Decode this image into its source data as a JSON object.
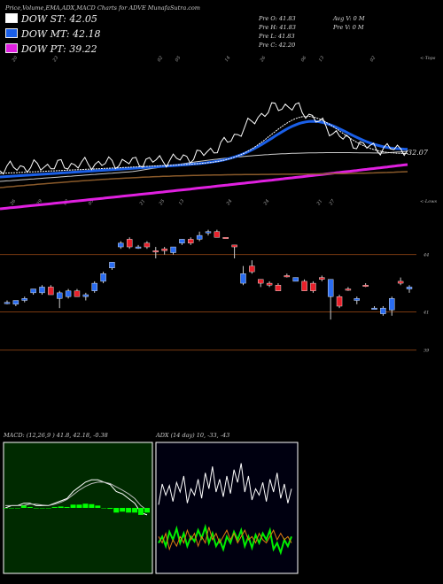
{
  "header": {
    "title": "Price,Volume,EMA,ADX,MACD Charts for ADVE MunafaSutra.com"
  },
  "legend": [
    {
      "label": "DOW ST: 42.05",
      "color": "#ffffff"
    },
    {
      "label": "DOW MT: 42.18",
      "color": "#1a5fe8"
    },
    {
      "label": "DOW PT: 39.22",
      "color": "#e020e0"
    }
  ],
  "stats": {
    "col1": [
      "Pre O: 41.83",
      "Pre H: 41.83",
      "Pre L: 41.83",
      "Pre C: 42.20"
    ],
    "col2": [
      "Avg V: 0 M",
      "Pre V: 0 M"
    ]
  },
  "price_chart": {
    "corner_top": "<-Tops",
    "corner_bottom": "<-Lows",
    "ema_label": "32.07",
    "top_date_labels": [
      "20",
      "23",
      "02",
      "05",
      "14",
      "26",
      "06",
      "13",
      "02"
    ],
    "bottom_date_labels": [
      "26",
      "29",
      "02",
      "05",
      "21",
      "25",
      "13",
      "24",
      "24",
      "21",
      "27"
    ],
    "levels": [
      {
        "value": 44,
        "label": "44"
      },
      {
        "value": 41,
        "label": "41"
      },
      {
        "value": 39,
        "label": "39"
      }
    ]
  },
  "chart_data": [
    {
      "type": "candlestick",
      "title": "",
      "ylim": [
        38.8,
        46.3
      ],
      "level_lines": [
        44,
        41,
        39
      ],
      "candles": [
        {
          "o": 41.5,
          "h": 41.6,
          "l": 41.4,
          "c": 41.5,
          "color": "blue"
        },
        {
          "o": 41.4,
          "h": 41.6,
          "l": 41.3,
          "c": 41.6,
          "color": "blue"
        },
        {
          "o": 41.6,
          "h": 41.8,
          "l": 41.5,
          "c": 41.7,
          "color": "blue"
        },
        {
          "o": 42.0,
          "h": 42.2,
          "l": 41.9,
          "c": 42.2,
          "color": "blue"
        },
        {
          "o": 42.0,
          "h": 42.4,
          "l": 41.9,
          "c": 42.3,
          "color": "blue"
        },
        {
          "o": 42.3,
          "h": 42.4,
          "l": 41.9,
          "c": 41.9,
          "color": "red"
        },
        {
          "o": 41.7,
          "h": 42.1,
          "l": 41.2,
          "c": 42.0,
          "color": "blue"
        },
        {
          "o": 41.8,
          "h": 42.2,
          "l": 41.7,
          "c": 42.1,
          "color": "blue"
        },
        {
          "o": 42.1,
          "h": 42.2,
          "l": 41.8,
          "c": 41.8,
          "color": "red"
        },
        {
          "o": 41.8,
          "h": 42.0,
          "l": 41.6,
          "c": 41.9,
          "color": "blue"
        },
        {
          "o": 42.1,
          "h": 42.6,
          "l": 42.0,
          "c": 42.5,
          "color": "blue"
        },
        {
          "o": 42.6,
          "h": 43.1,
          "l": 42.5,
          "c": 43.0,
          "color": "blue"
        },
        {
          "o": 43.3,
          "h": 43.6,
          "l": 43.2,
          "c": 43.6,
          "color": "blue"
        },
        {
          "o": 44.4,
          "h": 44.7,
          "l": 44.3,
          "c": 44.6,
          "color": "blue"
        },
        {
          "o": 44.8,
          "h": 44.9,
          "l": 44.3,
          "c": 44.4,
          "color": "red"
        },
        {
          "o": 44.4,
          "h": 44.5,
          "l": 44.3,
          "c": 44.4,
          "color": "blue"
        },
        {
          "o": 44.6,
          "h": 44.7,
          "l": 44.3,
          "c": 44.4,
          "color": "red"
        },
        {
          "o": 44.2,
          "h": 44.4,
          "l": 43.8,
          "c": 44.2,
          "color": "red"
        },
        {
          "o": 44.2,
          "h": 44.4,
          "l": 44.0,
          "c": 44.3,
          "color": "red"
        },
        {
          "o": 44.1,
          "h": 44.4,
          "l": 44.0,
          "c": 44.4,
          "color": "blue"
        },
        {
          "o": 44.6,
          "h": 44.8,
          "l": 44.5,
          "c": 44.8,
          "color": "blue"
        },
        {
          "o": 44.6,
          "h": 44.9,
          "l": 44.5,
          "c": 44.8,
          "color": "red"
        },
        {
          "o": 44.8,
          "h": 45.2,
          "l": 44.7,
          "c": 45.0,
          "color": "blue"
        },
        {
          "o": 45.2,
          "h": 45.3,
          "l": 45.0,
          "c": 45.2,
          "color": "blue"
        },
        {
          "o": 45.2,
          "h": 45.3,
          "l": 44.9,
          "c": 44.9,
          "color": "red"
        },
        {
          "o": 44.9,
          "h": 44.9,
          "l": 44.9,
          "c": 44.9,
          "color": "red"
        },
        {
          "o": 44.5,
          "h": 44.5,
          "l": 43.8,
          "c": 44.4,
          "color": "red"
        },
        {
          "o": 42.5,
          "h": 43.4,
          "l": 42.4,
          "c": 43.0,
          "color": "blue"
        },
        {
          "o": 43.4,
          "h": 43.7,
          "l": 43.0,
          "c": 43.1,
          "color": "red"
        },
        {
          "o": 42.7,
          "h": 42.7,
          "l": 42.3,
          "c": 42.5,
          "color": "red"
        },
        {
          "o": 42.4,
          "h": 42.6,
          "l": 42.3,
          "c": 42.5,
          "color": "red"
        },
        {
          "o": 42.4,
          "h": 42.5,
          "l": 42.1,
          "c": 42.1,
          "color": "red"
        },
        {
          "o": 42.9,
          "h": 43.0,
          "l": 42.8,
          "c": 42.9,
          "color": "red"
        },
        {
          "o": 42.8,
          "h": 42.8,
          "l": 42.6,
          "c": 42.6,
          "color": "blue"
        },
        {
          "o": 42.6,
          "h": 42.7,
          "l": 42.1,
          "c": 42.1,
          "color": "red"
        },
        {
          "o": 42.5,
          "h": 42.6,
          "l": 42.0,
          "c": 42.1,
          "color": "red"
        },
        {
          "o": 42.7,
          "h": 42.9,
          "l": 42.6,
          "c": 42.8,
          "color": "red"
        },
        {
          "o": 42.7,
          "h": 42.7,
          "l": 40.6,
          "c": 41.8,
          "color": "blue"
        },
        {
          "o": 41.8,
          "h": 41.9,
          "l": 41.2,
          "c": 41.3,
          "color": "red"
        },
        {
          "o": 42.2,
          "h": 42.3,
          "l": 42.1,
          "c": 42.2,
          "color": "red"
        },
        {
          "o": 41.7,
          "h": 41.8,
          "l": 41.4,
          "c": 41.6,
          "color": "blue"
        },
        {
          "o": 42.4,
          "h": 42.5,
          "l": 42.3,
          "c": 42.4,
          "color": "red"
        },
        {
          "o": 41.2,
          "h": 41.3,
          "l": 41.2,
          "c": 41.2,
          "color": "blue"
        },
        {
          "o": 40.9,
          "h": 41.3,
          "l": 40.8,
          "c": 41.2,
          "color": "blue"
        },
        {
          "o": 41.1,
          "h": 41.8,
          "l": 40.8,
          "c": 41.7,
          "color": "blue"
        },
        {
          "o": 42.6,
          "h": 42.8,
          "l": 42.4,
          "c": 42.5,
          "color": "red"
        },
        {
          "o": 42.2,
          "h": 42.4,
          "l": 42.0,
          "c": 42.3,
          "color": "blue"
        }
      ]
    },
    {
      "type": "line",
      "title": "MACD: (12,26,9 ) 41.8, 42.18, -0.38",
      "series": [
        {
          "color": "#ffffff",
          "values": [
            0.0,
            0.05,
            0.05,
            0.1,
            0.1,
            0.05,
            0.05,
            0.05,
            0.1,
            0.15,
            0.2,
            0.35,
            0.45,
            0.55,
            0.6,
            0.6,
            0.55,
            0.5,
            0.35,
            0.3,
            0.2,
            0.1,
            -0.1,
            -0.15
          ]
        },
        {
          "color": "#bbbbbb",
          "values": [
            0.05,
            0.05,
            0.05,
            0.05,
            0.08,
            0.08,
            0.06,
            0.05,
            0.08,
            0.12,
            0.18,
            0.28,
            0.38,
            0.46,
            0.52,
            0.55,
            0.55,
            0.52,
            0.45,
            0.38,
            0.3,
            0.2,
            0.05,
            -0.05
          ]
        },
        {
          "color": "#00ff00",
          "type": "bar",
          "values": [
            0.0,
            0.0,
            0.0,
            0.05,
            0.02,
            0.0,
            0.0,
            0.0,
            0.02,
            0.03,
            0.02,
            0.07,
            0.07,
            0.09,
            0.08,
            0.05,
            0.0,
            -0.02,
            -0.1,
            -0.08,
            -0.1,
            -0.1,
            -0.15,
            -0.1
          ]
        }
      ],
      "ylim": [
        -1.4,
        1.4
      ]
    },
    {
      "type": "line",
      "title": "ADX (14 day) 10, -33, -43",
      "series": [
        {
          "color": "#ffffff",
          "values": [
            42,
            55,
            48,
            54,
            44,
            56,
            50,
            60,
            43,
            52,
            48,
            58,
            46,
            62,
            52,
            66,
            50,
            58,
            47,
            60,
            49,
            64,
            56,
            68,
            50,
            60,
            45,
            52,
            48,
            56,
            44,
            58,
            50,
            62,
            46,
            55,
            43,
            52
          ]
        },
        {
          "color": "#00ee00",
          "values": [
            18,
            22,
            16,
            25,
            20,
            27,
            18,
            24,
            16,
            22,
            19,
            26,
            21,
            28,
            18,
            24,
            16,
            20,
            14,
            22,
            18,
            25,
            20,
            26,
            16,
            22,
            15,
            23,
            18,
            24,
            20,
            26,
            14,
            18,
            12,
            20,
            16,
            22
          ]
        },
        {
          "color": "#e07a10",
          "values": [
            22,
            18,
            24,
            14,
            20,
            16,
            22,
            18,
            26,
            20,
            24,
            16,
            22,
            18,
            28,
            20,
            24,
            18,
            22,
            26,
            20,
            24,
            18,
            22,
            26,
            20,
            22,
            18,
            24,
            20,
            18,
            22,
            26,
            20,
            24,
            20,
            22,
            18
          ]
        }
      ],
      "ylim": [
        0,
        80
      ]
    }
  ]
}
